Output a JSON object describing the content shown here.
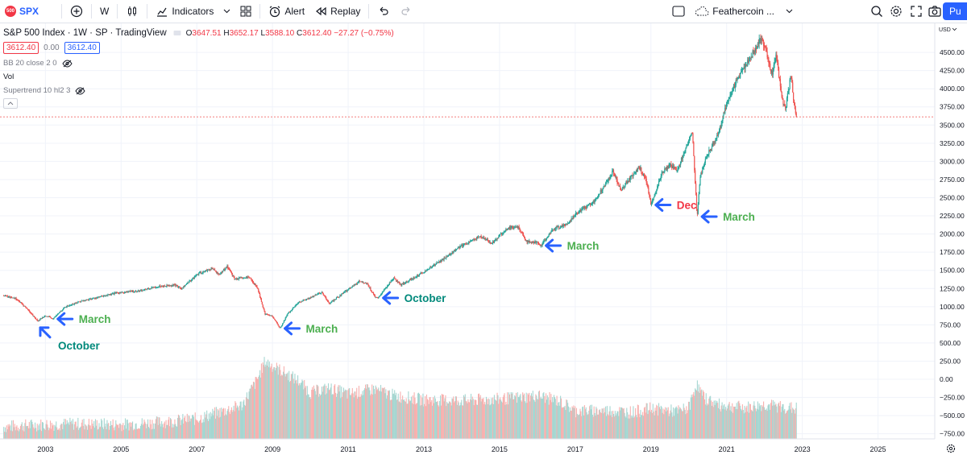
{
  "toolbar": {
    "symbol_badge": "500",
    "symbol": "SPX",
    "interval": "W",
    "indicators_label": "Indicators",
    "alert_label": "Alert",
    "replay_label": "Replay",
    "layout_name": "Feathercoin ...",
    "publish_label": "Pu"
  },
  "legend": {
    "title": "S&P 500 Index · 1W · SP · TradingView",
    "open_label": "O",
    "open": "3647.51",
    "high_label": "H",
    "high": "3652.17",
    "low_label": "L",
    "low": "3588.10",
    "close_label": "C",
    "close": "3612.40",
    "change": "−27.27 (−0.75%)",
    "bid": "3612.40",
    "spread": "0.00",
    "ask": "3612.40",
    "indicators": [
      "BB 20 close 2 0",
      "Vol",
      "Supertrend 10 hl2 3"
    ]
  },
  "colors": {
    "up": "#26a69a",
    "down": "#ef5350",
    "arrow": "#2962ff",
    "label_green": "#4caf50",
    "label_teal": "#00897b",
    "label_red": "#f23645",
    "accent": "#2962ff"
  },
  "chart_data": {
    "type": "candlestick",
    "title": "S&P 500 Index · 1W · SP · TradingView",
    "currency": "USD",
    "y_ticks": [
      4500,
      4250,
      4000,
      3750,
      3500,
      3250,
      3000,
      2750,
      2500,
      2250,
      2000,
      1750,
      1500,
      1250,
      1000,
      750,
      500,
      250,
      0,
      -250,
      -500,
      -750
    ],
    "y_tick_labels": [
      "4500.00",
      "4250.00",
      "4000.00",
      "3750.00",
      "3500.00",
      "3250.00",
      "3000.00",
      "2750.00",
      "2500.00",
      "2250.00",
      "2000.00",
      "1750.00",
      "1500.00",
      "1250.00",
      "1000.00",
      "750.00",
      "500.00",
      "250.00",
      "0.00",
      "−250.00",
      "−500.00",
      "−750.00"
    ],
    "x_ticks": [
      2003,
      2005,
      2007,
      2009,
      2011,
      2013,
      2015,
      2017,
      2019,
      2021,
      2023,
      2025
    ],
    "x_range": [
      2001.8,
      2026.5
    ],
    "y_range": [
      -820,
      4900
    ],
    "last_price": 3612.4,
    "price_series": [
      [
        2001.9,
        1150
      ],
      [
        2002.2,
        1120
      ],
      [
        2002.5,
        980
      ],
      [
        2002.8,
        800
      ],
      [
        2003.0,
        880
      ],
      [
        2003.2,
        830
      ],
      [
        2003.5,
        990
      ],
      [
        2003.9,
        1070
      ],
      [
        2004.4,
        1130
      ],
      [
        2004.9,
        1190
      ],
      [
        2005.5,
        1220
      ],
      [
        2006.0,
        1280
      ],
      [
        2006.4,
        1300
      ],
      [
        2006.6,
        1250
      ],
      [
        2007.0,
        1440
      ],
      [
        2007.4,
        1530
      ],
      [
        2007.6,
        1440
      ],
      [
        2007.8,
        1560
      ],
      [
        2008.0,
        1380
      ],
      [
        2008.4,
        1400
      ],
      [
        2008.6,
        1260
      ],
      [
        2008.8,
        900
      ],
      [
        2009.0,
        870
      ],
      [
        2009.2,
        700
      ],
      [
        2009.4,
        900
      ],
      [
        2009.7,
        1060
      ],
      [
        2010.0,
        1120
      ],
      [
        2010.3,
        1200
      ],
      [
        2010.5,
        1040
      ],
      [
        2010.9,
        1200
      ],
      [
        2011.3,
        1350
      ],
      [
        2011.5,
        1320
      ],
      [
        2011.7,
        1140
      ],
      [
        2011.8,
        1120
      ],
      [
        2012.2,
        1400
      ],
      [
        2012.4,
        1300
      ],
      [
        2012.8,
        1420
      ],
      [
        2013.0,
        1480
      ],
      [
        2013.5,
        1650
      ],
      [
        2014.0,
        1840
      ],
      [
        2014.5,
        1970
      ],
      [
        2014.8,
        1870
      ],
      [
        2015.2,
        2080
      ],
      [
        2015.5,
        2100
      ],
      [
        2015.7,
        1900
      ],
      [
        2016.0,
        1880
      ],
      [
        2016.1,
        1840
      ],
      [
        2016.4,
        2060
      ],
      [
        2016.8,
        2140
      ],
      [
        2017.0,
        2270
      ],
      [
        2017.5,
        2450
      ],
      [
        2018.0,
        2860
      ],
      [
        2018.2,
        2610
      ],
      [
        2018.7,
        2920
      ],
      [
        2018.9,
        2700
      ],
      [
        2019.0,
        2400
      ],
      [
        2019.3,
        2850
      ],
      [
        2019.5,
        2950
      ],
      [
        2019.7,
        2880
      ],
      [
        2020.0,
        3300
      ],
      [
        2020.1,
        3380
      ],
      [
        2020.15,
        2900
      ],
      [
        2020.22,
        2240
      ],
      [
        2020.3,
        2800
      ],
      [
        2020.5,
        3100
      ],
      [
        2020.8,
        3400
      ],
      [
        2021.0,
        3800
      ],
      [
        2021.3,
        4150
      ],
      [
        2021.6,
        4400
      ],
      [
        2021.9,
        4700
      ],
      [
        2022.0,
        4580
      ],
      [
        2022.2,
        4200
      ],
      [
        2022.3,
        4500
      ],
      [
        2022.45,
        3900
      ],
      [
        2022.55,
        3700
      ],
      [
        2022.7,
        4200
      ],
      [
        2022.8,
        3700
      ],
      [
        2022.85,
        3600
      ]
    ],
    "volume_series": [
      [
        2001.9,
        -680
      ],
      [
        2002.5,
        -660
      ],
      [
        2003.0,
        -650
      ],
      [
        2003.8,
        -640
      ],
      [
        2005.0,
        -650
      ],
      [
        2006.0,
        -620
      ],
      [
        2007.0,
        -570
      ],
      [
        2007.8,
        -450
      ],
      [
        2008.2,
        -380
      ],
      [
        2008.6,
        -30
      ],
      [
        2008.8,
        220
      ],
      [
        2009.2,
        100
      ],
      [
        2009.7,
        -50
      ],
      [
        2010.0,
        -210
      ],
      [
        2010.5,
        -150
      ],
      [
        2011.0,
        -230
      ],
      [
        2011.7,
        -160
      ],
      [
        2012.2,
        -250
      ],
      [
        2013.0,
        -310
      ],
      [
        2014.0,
        -320
      ],
      [
        2015.0,
        -300
      ],
      [
        2015.7,
        -270
      ],
      [
        2016.0,
        -250
      ],
      [
        2016.6,
        -330
      ],
      [
        2017.0,
        -460
      ],
      [
        2018.0,
        -460
      ],
      [
        2018.5,
        -480
      ],
      [
        2019.0,
        -430
      ],
      [
        2019.7,
        -470
      ],
      [
        2020.0,
        -420
      ],
      [
        2020.2,
        -90
      ],
      [
        2020.4,
        -280
      ],
      [
        2020.8,
        -380
      ],
      [
        2021.5,
        -420
      ],
      [
        2022.0,
        -380
      ],
      [
        2022.8,
        -430
      ]
    ],
    "annotations": [
      {
        "text": "March",
        "color": "label_green",
        "x": 2003.2,
        "y": 830,
        "arrow": "left"
      },
      {
        "text": "October",
        "color": "label_teal",
        "x": 2002.8,
        "y": 800,
        "arrow": "up-left"
      },
      {
        "text": "March",
        "color": "label_green",
        "x": 2009.2,
        "y": 700,
        "arrow": "left"
      },
      {
        "text": "October",
        "color": "label_teal",
        "x": 2011.8,
        "y": 1120,
        "arrow": "left"
      },
      {
        "text": "March",
        "color": "label_green",
        "x": 2016.1,
        "y": 1840,
        "arrow": "left"
      },
      {
        "text": "Dec",
        "color": "label_red",
        "x": 2019.0,
        "y": 2400,
        "arrow": "left"
      },
      {
        "text": "March",
        "color": "label_green",
        "x": 2020.22,
        "y": 2240,
        "arrow": "left"
      }
    ]
  }
}
